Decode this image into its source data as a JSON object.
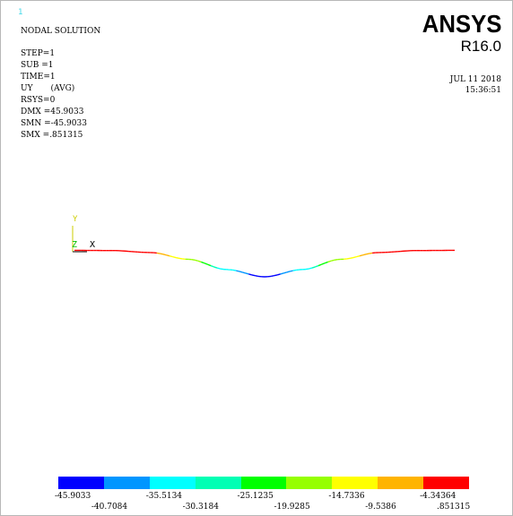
{
  "window": {
    "number": "1"
  },
  "info": {
    "lines": [
      "NODAL SOLUTION",
      "STEP=1",
      "SUB =1",
      "TIME=1",
      "UY       (AVG)",
      "RSYS=0",
      "DMX =45.9033",
      "SMN =-45.9033",
      "SMX =.851315"
    ]
  },
  "brand": {
    "name": "ANSYS",
    "version": "R16.0"
  },
  "timestamp": {
    "date": "JUL 11 2018",
    "time": "15:36:51"
  },
  "triad": {
    "y_label": "Y",
    "z_label": "Z",
    "x_label": "X",
    "y_color": "#cccc00",
    "z_color": "#00c000"
  },
  "legend": {
    "colors": [
      "#0000ff",
      "#0096ff",
      "#00ffff",
      "#00ffb4",
      "#00ff00",
      "#96ff00",
      "#ffff00",
      "#ffb400",
      "#ff0000"
    ],
    "labels_upper": [
      "-45.9033",
      "-35.5134",
      "-25.1235",
      "-14.7336",
      "-4.34364"
    ],
    "labels_lower": [
      "-40.7084",
      "-30.3184",
      "-19.9285",
      "-9.5386",
      ".851315"
    ]
  },
  "chart_data": {
    "type": "line",
    "x": [
      0,
      0.1,
      0.2,
      0.3,
      0.4,
      0.5,
      0.6,
      0.7,
      0.8,
      0.9,
      1.0
    ],
    "values": [
      0.85,
      0.5,
      -3,
      -15,
      -33,
      -45.9,
      -33,
      -15,
      -3,
      0.5,
      0.85
    ],
    "colormap": "ansys-rainbow",
    "vmin": -45.9033,
    "vmax": 0.851315
  }
}
